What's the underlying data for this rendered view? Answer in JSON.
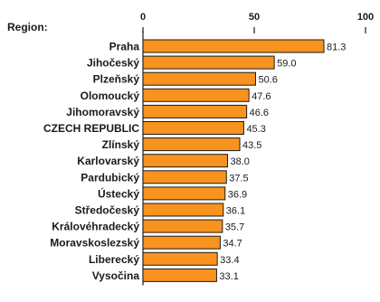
{
  "region_label": "Region:",
  "chart_data": {
    "type": "bar",
    "orientation": "horizontal",
    "categories": [
      "Praha",
      "Jihočeský",
      "Plzeňský",
      "Olomoucký",
      "Jihomoravský",
      "CZECH REPUBLIC",
      "Zlínský",
      "Karlovarský",
      "Pardubický",
      "Ústecký",
      "Středočeský",
      "Královéhradecký",
      "Moravskoslezský",
      "Liberecký",
      "Vysočina"
    ],
    "values": [
      81.3,
      59.0,
      50.6,
      47.6,
      46.6,
      45.3,
      43.5,
      38.0,
      37.5,
      36.9,
      36.1,
      35.7,
      34.7,
      33.4,
      33.1
    ],
    "value_labels": [
      "81.3",
      "59.0",
      "50.6",
      "47.6",
      "46.6",
      "45.3",
      "43.5",
      "38.0",
      "37.5",
      "36.9",
      "36.1",
      "35.7",
      "34.7",
      "33.4",
      "33.1"
    ],
    "xlim": [
      0,
      100
    ],
    "x_ticks": [
      0,
      50,
      100
    ],
    "x_tick_labels": [
      "0",
      "50",
      "100"
    ],
    "bar_color": "#f7931e",
    "bar_edge_color": "#1a1a1a",
    "grid": false,
    "legend": "none"
  }
}
